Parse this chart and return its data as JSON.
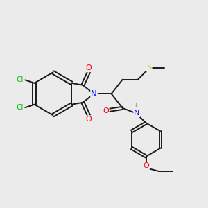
{
  "background_color": "#ebebeb",
  "bond_color": "#1a1a1a",
  "atom_colors": {
    "Cl": "#00bb00",
    "N": "#0000ff",
    "O": "#ff0000",
    "S": "#cccc00",
    "H": "#888888",
    "C": "#1a1a1a"
  },
  "figsize": [
    3.0,
    3.0
  ],
  "dpi": 100
}
